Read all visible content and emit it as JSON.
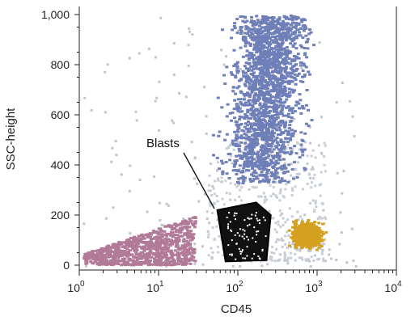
{
  "chart_data": {
    "type": "scatter",
    "xlabel": "CD45",
    "ylabel": "SSC-height",
    "x_scale": "log",
    "xlim": [
      1,
      10000
    ],
    "ylim": [
      0,
      1000
    ],
    "x_ticks": [
      {
        "value": 1,
        "base": "10",
        "exp": "0"
      },
      {
        "value": 10,
        "base": "10",
        "exp": "1"
      },
      {
        "value": 100,
        "base": "10",
        "exp": "2"
      },
      {
        "value": 1000,
        "base": "10",
        "exp": "3"
      },
      {
        "value": 10000,
        "base": "10",
        "exp": "4"
      }
    ],
    "y_ticks": [
      {
        "value": 0,
        "label": "0"
      },
      {
        "value": 200,
        "label": "200"
      },
      {
        "value": 400,
        "label": "400"
      },
      {
        "value": 600,
        "label": "600"
      },
      {
        "value": 800,
        "label": "800"
      },
      {
        "value": 1000,
        "label": "1,000"
      }
    ],
    "grid": false,
    "populations": [
      {
        "color": "#c0c6cc",
        "cd45_range": [
          1,
          3000
        ],
        "ssc_range": [
          0,
          1000
        ],
        "description": "background events (scattered gray)"
      },
      {
        "color": "#b07a98",
        "cd45_range": [
          1.1,
          28
        ],
        "ssc_range": [
          5,
          210
        ]
      },
      {
        "color": "#6f7fb8",
        "cd45_range": [
          40,
          700
        ],
        "ssc_range": [
          330,
          1000
        ]
      },
      {
        "color": "#d4a020",
        "cd45_range": [
          380,
          1500
        ],
        "ssc_range": [
          60,
          190
        ]
      },
      {
        "color": "#111111",
        "cd45_range": [
          55,
          260
        ],
        "ssc_range": [
          20,
          250
        ]
      }
    ],
    "gates": [
      {
        "label": "Blasts",
        "polygon": [
          [
            55,
            220
          ],
          [
            170,
            250
          ],
          [
            260,
            200
          ],
          [
            230,
            20
          ],
          [
            70,
            15
          ]
        ]
      }
    ]
  }
}
